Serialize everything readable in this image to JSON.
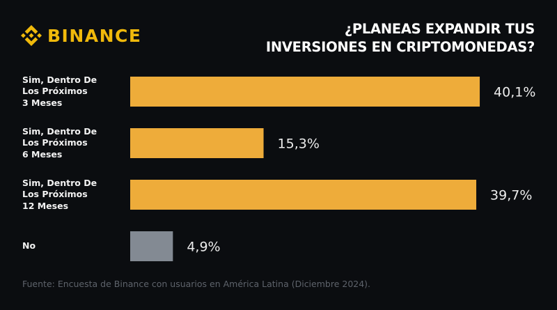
{
  "brand": {
    "logo_icon": "binance-diamond-icon",
    "name": "BINANCE",
    "color": "#f0b90b"
  },
  "title_lines": [
    "¿PLANEAS EXPANDIR TUS",
    "INVERSIONES EN CRIPTOMONEDAS?"
  ],
  "chart_data": {
    "type": "bar",
    "orientation": "horizontal",
    "title": "¿PLANEAS EXPANDIR TUS INVERSIONES EN CRIPTOMONEDAS?",
    "categories": [
      "Sim, Dentro De\nLos Próximos\n3 Meses",
      "Sim, Dentro De\nLos Próximos\n6 Meses",
      "Sim, Dentro De\nLos Próximos\n12 Meses",
      "No"
    ],
    "values": [
      40.1,
      15.3,
      39.7,
      4.9
    ],
    "value_labels": [
      "40,1%",
      "15,3%",
      "39,7%",
      "4,9%"
    ],
    "colors": [
      "#eeac3a",
      "#eeac3a",
      "#eeac3a",
      "#838a93"
    ],
    "unit": "%",
    "xlabel": "",
    "ylabel": "",
    "xlim": [
      0,
      45
    ],
    "grid": false,
    "legend": "none"
  },
  "footer": "Fuente: Encuesta de Binance con usuarios en América Latina (Diciembre 2024)."
}
